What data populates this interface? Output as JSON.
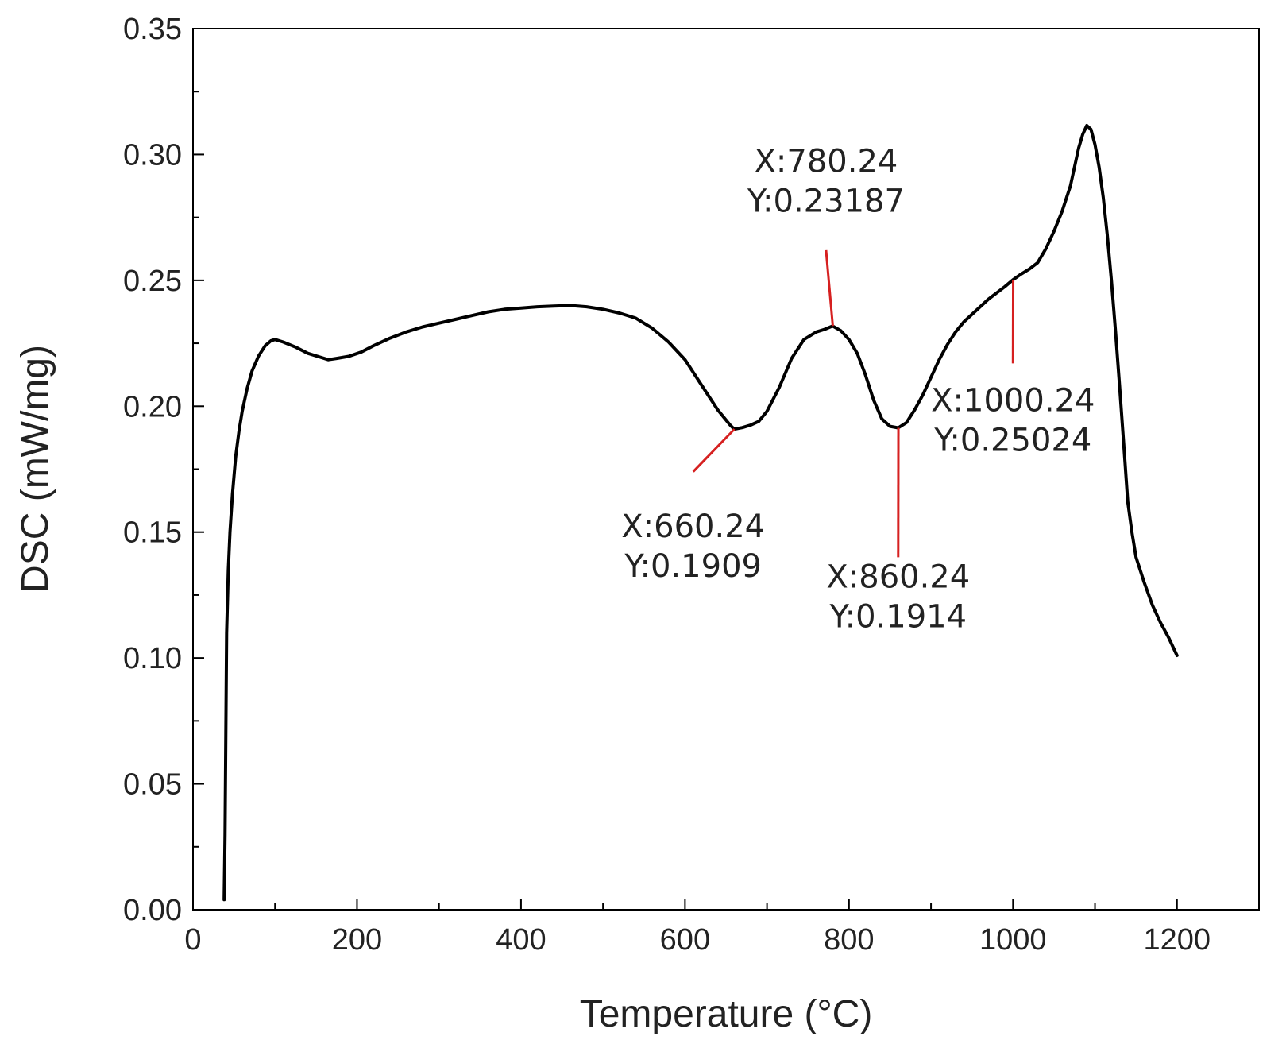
{
  "chart_data": {
    "type": "line",
    "title": "",
    "xlabel": "Temperature (°C)",
    "ylabel": "DSC (mW/mg)",
    "xlim": [
      0,
      1300
    ],
    "ylim": [
      0.0,
      0.35
    ],
    "x_ticks": [
      0,
      200,
      400,
      600,
      800,
      1000,
      1200
    ],
    "x_tick_labels": [
      "0",
      "200",
      "400",
      "600",
      "800",
      "1000",
      "1200"
    ],
    "y_ticks": [
      0.0,
      0.05,
      0.1,
      0.15,
      0.2,
      0.25,
      0.3,
      0.35
    ],
    "y_tick_labels": [
      "0.00",
      "0.05",
      "0.10",
      "0.15",
      "0.20",
      "0.25",
      "0.30",
      "0.35"
    ],
    "grid": false,
    "legend": "none",
    "line_color": "#000000",
    "annotation_color": "#d62020",
    "series": [
      {
        "x": [
          38,
          39,
          40,
          41,
          43,
          45,
          48,
          52,
          56,
          60,
          66,
          72,
          80,
          88,
          95,
          100,
          110,
          125,
          140,
          155,
          165,
          175,
          190,
          205,
          220,
          240,
          260,
          280,
          300,
          320,
          340,
          360,
          380,
          400,
          420,
          440,
          460,
          480,
          500,
          520,
          540,
          560,
          580,
          600,
          620,
          640,
          655,
          660,
          670,
          680,
          690,
          700,
          715,
          730,
          745,
          760,
          770,
          780,
          790,
          800,
          810,
          820,
          830,
          840,
          850,
          860,
          870,
          880,
          890,
          900,
          910,
          920,
          930,
          940,
          950,
          960,
          970,
          980,
          990,
          1000,
          1010,
          1020,
          1030,
          1040,
          1050,
          1060,
          1070,
          1080,
          1085,
          1090,
          1095,
          1100,
          1105,
          1110,
          1115,
          1120,
          1125,
          1130,
          1135,
          1140,
          1145,
          1150,
          1160,
          1170,
          1180,
          1190,
          1200
        ],
        "y": [
          0.004,
          0.03,
          0.07,
          0.11,
          0.135,
          0.15,
          0.165,
          0.18,
          0.19,
          0.198,
          0.207,
          0.214,
          0.22,
          0.224,
          0.226,
          0.2265,
          0.2255,
          0.2235,
          0.221,
          0.2195,
          0.2185,
          0.219,
          0.2198,
          0.2215,
          0.224,
          0.227,
          0.2295,
          0.2315,
          0.233,
          0.2345,
          0.236,
          0.2375,
          0.2385,
          0.239,
          0.2395,
          0.2398,
          0.24,
          0.2395,
          0.2385,
          0.237,
          0.235,
          0.231,
          0.2255,
          0.2185,
          0.2085,
          0.1985,
          0.1925,
          0.1909,
          0.1915,
          0.1925,
          0.194,
          0.198,
          0.2075,
          0.219,
          0.2265,
          0.2295,
          0.2305,
          0.23187,
          0.23,
          0.2265,
          0.221,
          0.2125,
          0.2025,
          0.195,
          0.192,
          0.1914,
          0.1935,
          0.1985,
          0.2045,
          0.2115,
          0.2185,
          0.2245,
          0.2295,
          0.2335,
          0.2365,
          0.2395,
          0.2425,
          0.245,
          0.2475,
          0.25024,
          0.2525,
          0.2545,
          0.257,
          0.2625,
          0.2695,
          0.2775,
          0.2875,
          0.3025,
          0.308,
          0.3115,
          0.31,
          0.304,
          0.295,
          0.283,
          0.268,
          0.25,
          0.23,
          0.208,
          0.185,
          0.162,
          0.15,
          0.14,
          0.13,
          0.121,
          0.114,
          0.108,
          0.101
        ]
      }
    ],
    "annotations": [
      {
        "x": 660.24,
        "y": 0.1909,
        "x_text": "X:660.24",
        "y_text": "Y:0.1909",
        "label_x": 610,
        "label_y": 0.148,
        "anchor_y": 0.174
      },
      {
        "x": 780.24,
        "y": 0.23187,
        "x_text": "X:780.24",
        "y_text": "Y:0.23187",
        "label_x": 772,
        "label_y": 0.293,
        "anchor_y": 0.262
      },
      {
        "x": 860.24,
        "y": 0.1914,
        "x_text": "X:860.24",
        "y_text": "Y:0.1914",
        "label_x": 860,
        "label_y": 0.128,
        "anchor_y": 0.14
      },
      {
        "x": 1000.24,
        "y": 0.25024,
        "x_text": "X:1000.24",
        "y_text": "Y:0.25024",
        "label_x": 1000,
        "label_y": 0.198,
        "anchor_y": 0.217
      }
    ]
  }
}
